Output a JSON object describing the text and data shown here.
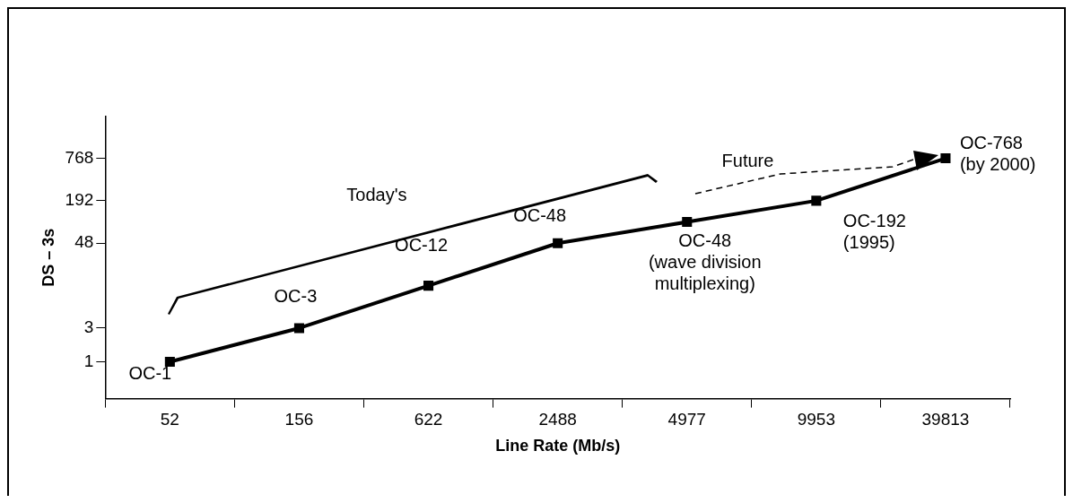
{
  "chart_data": {
    "type": "line",
    "xlabel": "Line Rate (Mb/s)",
    "ylabel": "DS – 3s",
    "categories": [
      "52",
      "156",
      "622",
      "2488",
      "4977",
      "9953",
      "39813"
    ],
    "series": [
      {
        "color": "#000000",
        "values": [
          1,
          3,
          12,
          48,
          96,
          192,
          768
        ]
      }
    ],
    "log": "y",
    "ylim": [
      0.3,
      3000
    ],
    "yticks": [
      1,
      3,
      48,
      192,
      768
    ],
    "grid": false,
    "legend": false,
    "marker": "square",
    "line_style": "solid",
    "annotations": [
      "Today's",
      "Future",
      {
        "text": "OC-1",
        "x": "52",
        "y": 1
      },
      {
        "text": "OC-3",
        "x": "156",
        "y": 3
      },
      {
        "text": "OC-12",
        "x": "622",
        "y": 12
      },
      {
        "text": "OC-48",
        "x": "2488",
        "y": 48
      },
      {
        "text": "OC-48\n(wave division\nmultiplexing)",
        "x": "4977",
        "y": 96
      },
      {
        "text": "OC-192\n(1995)",
        "x": "9953",
        "y": 192
      },
      {
        "text": "OC-768\n(by 2000)",
        "x": "39813",
        "y": 768
      }
    ]
  }
}
